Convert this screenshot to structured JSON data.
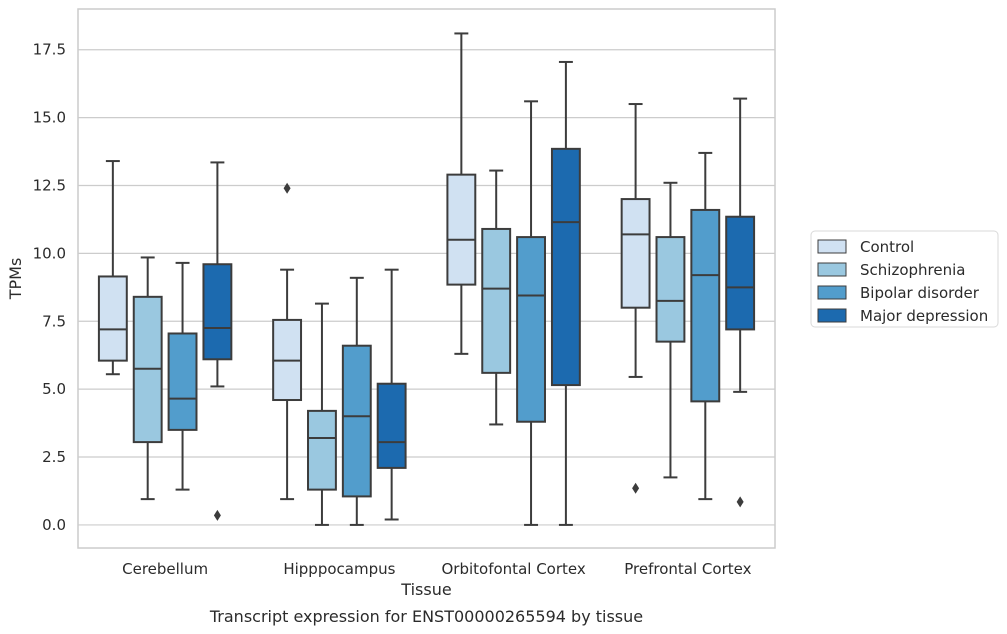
{
  "caption": "Transcript expression for ENST00000265594 by tissue",
  "chart_data": {
    "type": "box",
    "xlabel": "Tissue",
    "ylabel": "TPMs",
    "ylim": [
      -0.85,
      19.0
    ],
    "yticks": [
      "0.0",
      "2.5",
      "5.0",
      "7.5",
      "10.0",
      "12.5",
      "15.0",
      "17.5"
    ],
    "grid": "horizontal",
    "legend_position": "center-right, outside plot",
    "categories": [
      "Cerebellum",
      "Hipppocampus",
      "Orbitofontal Cortex",
      "Prefrontal Cortex"
    ],
    "series": [
      {
        "name": "Control",
        "color": "#d0e1f2",
        "boxes": [
          {
            "whisker_low": 5.55,
            "q1": 6.05,
            "median": 7.2,
            "q3": 9.15,
            "whisker_high": 13.4,
            "outliers": []
          },
          {
            "whisker_low": 0.95,
            "q1": 4.6,
            "median": 6.05,
            "q3": 7.55,
            "whisker_high": 9.4,
            "outliers": [
              12.4
            ]
          },
          {
            "whisker_low": 6.3,
            "q1": 8.85,
            "median": 10.5,
            "q3": 12.9,
            "whisker_high": 18.1,
            "outliers": []
          },
          {
            "whisker_low": 5.45,
            "q1": 8.0,
            "median": 10.7,
            "q3": 12.0,
            "whisker_high": 15.5,
            "outliers": [
              1.35
            ]
          }
        ]
      },
      {
        "name": "Schizophrenia",
        "color": "#9ac8e0",
        "boxes": [
          {
            "whisker_low": 0.95,
            "q1": 3.05,
            "median": 5.75,
            "q3": 8.4,
            "whisker_high": 9.85,
            "outliers": []
          },
          {
            "whisker_low": 0.0,
            "q1": 1.3,
            "median": 3.2,
            "q3": 4.2,
            "whisker_high": 8.15,
            "outliers": []
          },
          {
            "whisker_low": 3.7,
            "q1": 5.6,
            "median": 8.7,
            "q3": 10.9,
            "whisker_high": 13.05,
            "outliers": []
          },
          {
            "whisker_low": 1.75,
            "q1": 6.75,
            "median": 8.25,
            "q3": 10.6,
            "whisker_high": 12.6,
            "outliers": []
          }
        ]
      },
      {
        "name": "Bipolar disorder",
        "color": "#529dcc",
        "boxes": [
          {
            "whisker_low": 1.3,
            "q1": 3.5,
            "median": 4.65,
            "q3": 7.05,
            "whisker_high": 9.65,
            "outliers": []
          },
          {
            "whisker_low": 0.0,
            "q1": 1.05,
            "median": 4.0,
            "q3": 6.6,
            "whisker_high": 9.1,
            "outliers": []
          },
          {
            "whisker_low": 0.0,
            "q1": 3.8,
            "median": 8.45,
            "q3": 10.6,
            "whisker_high": 15.6,
            "outliers": []
          },
          {
            "whisker_low": 0.95,
            "q1": 4.55,
            "median": 9.2,
            "q3": 11.6,
            "whisker_high": 13.7,
            "outliers": []
          }
        ]
      },
      {
        "name": "Major depression",
        "color": "#1c6aaf",
        "boxes": [
          {
            "whisker_low": 5.1,
            "q1": 6.1,
            "median": 7.25,
            "q3": 9.6,
            "whisker_high": 13.35,
            "outliers": [
              0.35
            ]
          },
          {
            "whisker_low": 0.2,
            "q1": 2.1,
            "median": 3.05,
            "q3": 5.2,
            "whisker_high": 9.4,
            "outliers": []
          },
          {
            "whisker_low": 0.0,
            "q1": 5.15,
            "median": 11.15,
            "q3": 13.85,
            "whisker_high": 17.05,
            "outliers": []
          },
          {
            "whisker_low": 4.9,
            "q1": 7.2,
            "median": 8.75,
            "q3": 11.35,
            "whisker_high": 15.7,
            "outliers": [
              0.85
            ]
          }
        ]
      }
    ],
    "colors": {
      "grid": "#cccccc",
      "spine": "#cccccc",
      "edge": "#3c3c3c"
    }
  }
}
